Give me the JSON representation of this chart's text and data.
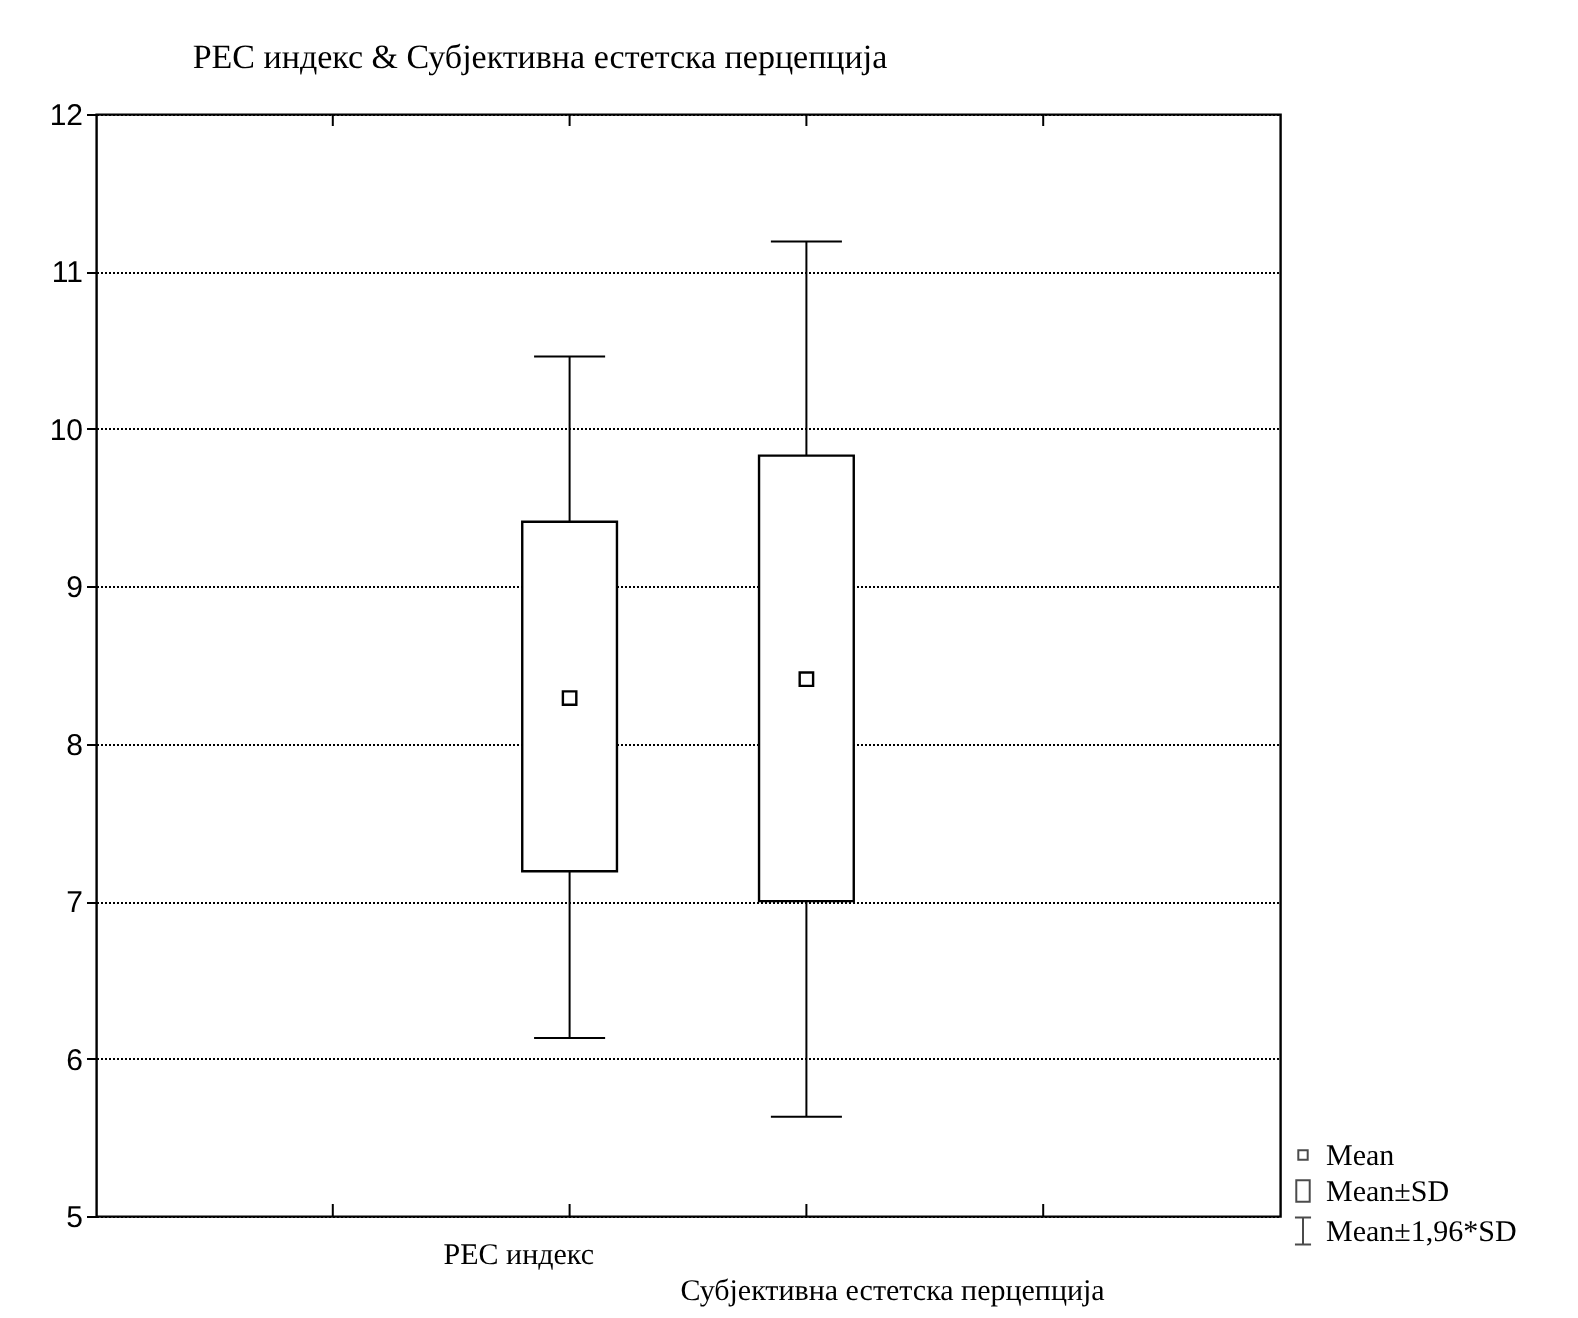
{
  "chart_data": {
    "type": "box",
    "title": "РЕС индекс & Субјективна естетска перцепција",
    "categories": [
      "РЕС  индекс",
      "Субјективна естетска перцепција"
    ],
    "boxes": [
      {
        "low": 6.13,
        "q1": 7.19,
        "q3": 9.41,
        "high": 10.46,
        "mean": 8.29
      },
      {
        "low": 5.63,
        "q1": 7.0,
        "q3": 9.83,
        "high": 11.19,
        "mean": 8.41
      }
    ],
    "color": "#000000",
    "ylim": [
      5,
      12
    ],
    "yticks": [
      5,
      6,
      7,
      8,
      9,
      10,
      11,
      12
    ],
    "grid": "y",
    "annotations": [
      "Mean",
      "Mean±SD",
      "Mean±1,96*SD"
    ]
  }
}
